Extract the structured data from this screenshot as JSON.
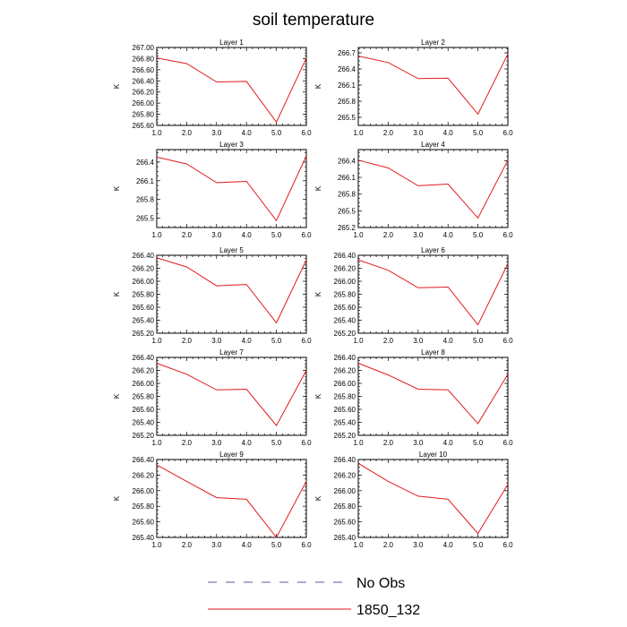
{
  "title": "soil temperature",
  "x_tick_labels": [
    "1.0",
    "2.0",
    "3.0",
    "4.0",
    "5.0",
    "6.0"
  ],
  "legend": [
    {
      "label": "No Obs",
      "color": "#5a5aa0",
      "dash": true
    },
    {
      "label": "1850_132",
      "color": "#e41a1c",
      "dash": false
    }
  ],
  "chart_data": [
    {
      "type": "line",
      "title": "Layer 1",
      "xlabel": "",
      "ylabel": "K",
      "xlim": [
        1,
        6
      ],
      "ylim": [
        265.6,
        267.0
      ],
      "yticks": [
        265.6,
        265.8,
        266.0,
        266.2,
        266.4,
        266.6,
        266.8,
        267.0
      ],
      "ytick_labels": [
        "265.60",
        "265.80",
        "266.00",
        "266.20",
        "266.40",
        "266.60",
        "266.80",
        "267.00"
      ],
      "series": [
        {
          "name": "1850_132",
          "x": [
            1,
            2,
            3,
            4,
            5,
            6
          ],
          "values": [
            266.81,
            266.71,
            266.38,
            266.39,
            265.66,
            266.81
          ]
        }
      ]
    },
    {
      "type": "line",
      "title": "Layer 2",
      "xlabel": "",
      "ylabel": "K",
      "xlim": [
        1,
        6
      ],
      "ylim": [
        265.35,
        266.8
      ],
      "yticks": [
        265.5,
        265.8,
        266.1,
        266.4,
        266.7
      ],
      "ytick_labels": [
        "265.5",
        "265.8",
        "266.1",
        "266.4",
        "266.7"
      ],
      "series": [
        {
          "name": "1850_132",
          "x": [
            1,
            2,
            3,
            4,
            5,
            6
          ],
          "values": [
            266.64,
            266.52,
            266.22,
            266.23,
            265.56,
            266.68
          ]
        }
      ]
    },
    {
      "type": "line",
      "title": "Layer 3",
      "xlabel": "",
      "ylabel": "K",
      "xlim": [
        1,
        6
      ],
      "ylim": [
        265.35,
        266.6
      ],
      "yticks": [
        265.5,
        265.8,
        266.1,
        266.4
      ],
      "ytick_labels": [
        "265.5",
        "265.8",
        "266.1",
        "266.4"
      ],
      "series": [
        {
          "name": "1850_132",
          "x": [
            1,
            2,
            3,
            4,
            5,
            6
          ],
          "values": [
            266.48,
            266.37,
            266.07,
            266.09,
            265.46,
            266.5
          ]
        }
      ]
    },
    {
      "type": "line",
      "title": "Layer 4",
      "xlabel": "",
      "ylabel": "K",
      "xlim": [
        1,
        6
      ],
      "ylim": [
        265.2,
        266.6
      ],
      "yticks": [
        265.2,
        265.5,
        265.8,
        266.1,
        266.4
      ],
      "ytick_labels": [
        "265.2",
        "265.5",
        "265.8",
        "266.1",
        "266.4"
      ],
      "series": [
        {
          "name": "1850_132",
          "x": [
            1,
            2,
            3,
            4,
            5,
            6
          ],
          "values": [
            266.41,
            266.27,
            265.95,
            265.98,
            265.37,
            266.41
          ]
        }
      ]
    },
    {
      "type": "line",
      "title": "Layer 5",
      "xlabel": "",
      "ylabel": "K",
      "xlim": [
        1,
        6
      ],
      "ylim": [
        265.2,
        266.4
      ],
      "yticks": [
        265.2,
        265.4,
        265.6,
        265.8,
        266.0,
        266.2,
        266.4
      ],
      "ytick_labels": [
        "265.20",
        "265.40",
        "265.60",
        "265.80",
        "266.00",
        "266.20",
        "266.40"
      ],
      "series": [
        {
          "name": "1850_132",
          "x": [
            1,
            2,
            3,
            4,
            5,
            6
          ],
          "values": [
            266.36,
            266.22,
            265.93,
            265.95,
            265.36,
            266.33
          ]
        }
      ]
    },
    {
      "type": "line",
      "title": "Layer 6",
      "xlabel": "",
      "ylabel": "K",
      "xlim": [
        1,
        6
      ],
      "ylim": [
        265.2,
        266.4
      ],
      "yticks": [
        265.2,
        265.4,
        265.6,
        265.8,
        266.0,
        266.2,
        266.4
      ],
      "ytick_labels": [
        "265.20",
        "265.40",
        "265.60",
        "265.80",
        "266.00",
        "266.20",
        "266.40"
      ],
      "series": [
        {
          "name": "1850_132",
          "x": [
            1,
            2,
            3,
            4,
            5,
            6
          ],
          "values": [
            266.33,
            266.17,
            265.9,
            265.91,
            265.33,
            266.27
          ]
        }
      ]
    },
    {
      "type": "line",
      "title": "Layer 7",
      "xlabel": "",
      "ylabel": "K",
      "xlim": [
        1,
        6
      ],
      "ylim": [
        265.2,
        266.4
      ],
      "yticks": [
        265.2,
        265.4,
        265.6,
        265.8,
        266.0,
        266.2,
        266.4
      ],
      "ytick_labels": [
        "265.20",
        "265.40",
        "265.60",
        "265.80",
        "266.00",
        "266.20",
        "266.40"
      ],
      "series": [
        {
          "name": "1850_132",
          "x": [
            1,
            2,
            3,
            4,
            5,
            6
          ],
          "values": [
            266.31,
            266.14,
            265.9,
            265.91,
            265.35,
            266.2
          ]
        }
      ]
    },
    {
      "type": "line",
      "title": "Layer 8",
      "xlabel": "",
      "ylabel": "K",
      "xlim": [
        1,
        6
      ],
      "ylim": [
        265.2,
        266.4
      ],
      "yticks": [
        265.2,
        265.4,
        265.6,
        265.8,
        266.0,
        266.2,
        266.4
      ],
      "ytick_labels": [
        "265.20",
        "265.40",
        "265.60",
        "265.80",
        "266.00",
        "266.20",
        "266.40"
      ],
      "series": [
        {
          "name": "1850_132",
          "x": [
            1,
            2,
            3,
            4,
            5,
            6
          ],
          "values": [
            266.31,
            266.13,
            265.91,
            265.9,
            265.38,
            266.14
          ]
        }
      ]
    },
    {
      "type": "line",
      "title": "Layer 9",
      "xlabel": "",
      "ylabel": "K",
      "xlim": [
        1,
        6
      ],
      "ylim": [
        265.4,
        266.4
      ],
      "yticks": [
        265.4,
        265.6,
        265.8,
        266.0,
        266.2,
        266.4
      ],
      "ytick_labels": [
        "265.40",
        "265.60",
        "265.80",
        "266.00",
        "266.20",
        "266.40"
      ],
      "series": [
        {
          "name": "1850_132",
          "x": [
            1,
            2,
            3,
            4,
            5,
            6
          ],
          "values": [
            266.33,
            266.12,
            265.91,
            265.89,
            265.4,
            266.12
          ]
        }
      ]
    },
    {
      "type": "line",
      "title": "Layer 10",
      "xlabel": "",
      "ylabel": "K",
      "xlim": [
        1,
        6
      ],
      "ylim": [
        265.4,
        266.4
      ],
      "yticks": [
        265.4,
        265.6,
        265.8,
        266.0,
        266.2,
        266.4
      ],
      "ytick_labels": [
        "265.40",
        "265.60",
        "265.80",
        "266.00",
        "266.20",
        "266.40"
      ],
      "series": [
        {
          "name": "1850_132",
          "x": [
            1,
            2,
            3,
            4,
            5,
            6
          ],
          "values": [
            266.35,
            266.12,
            265.93,
            265.89,
            265.45,
            266.08
          ]
        }
      ]
    }
  ]
}
